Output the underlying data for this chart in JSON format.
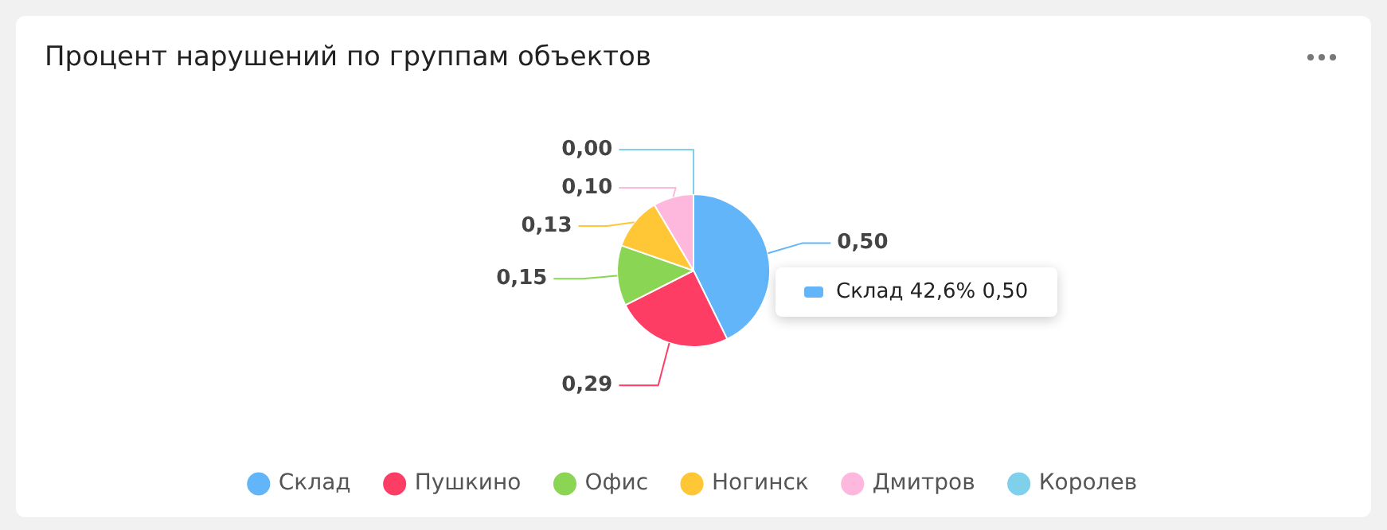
{
  "chart_data": {
    "type": "pie",
    "title": "Процент нарушений по группам объектов",
    "categories": [
      "Склад",
      "Пушкино",
      "Офис",
      "Ногинск",
      "Дмитров",
      "Королев"
    ],
    "values": [
      0.5,
      0.29,
      0.15,
      0.13,
      0.1,
      0
    ],
    "value_labels": [
      "0,50",
      "0,29",
      "0,15",
      "0,13",
      "0,10",
      "0,00"
    ],
    "colors": [
      "#61b5f8",
      "#fe3d64",
      "#8ad554",
      "#ffc636",
      "#ffb8dd",
      "#7fd0ea"
    ],
    "legend": "bottom",
    "annotations": [
      "Склад 42,6% 0,50"
    ]
  }
}
